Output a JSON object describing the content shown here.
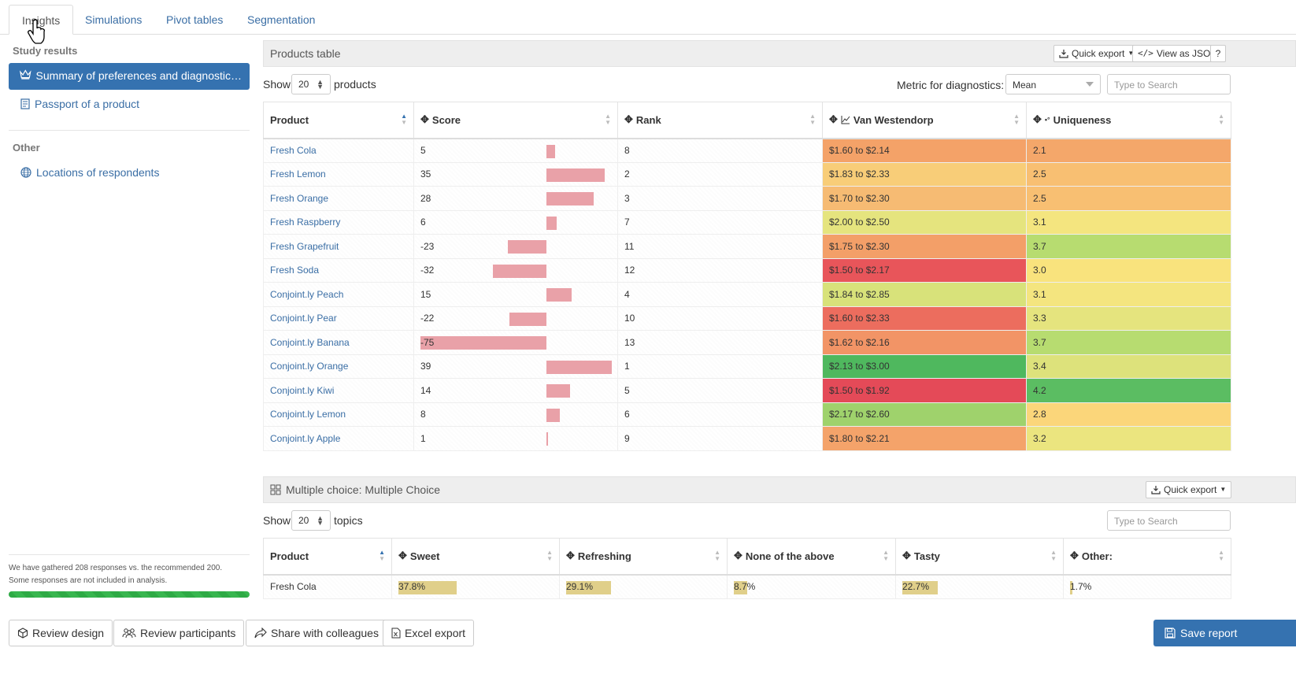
{
  "tabs": [
    "Insights",
    "Simulations",
    "Pivot tables",
    "Segmentation"
  ],
  "sidebar": {
    "study_results_heading": "Study results",
    "active_item": "Summary of preferences and diagnostic…",
    "passport_item": "Passport of a product",
    "other_heading": "Other",
    "locations_item": "Locations of respondents",
    "note_line1": "We have gathered 208 responses vs. the recommended 200.",
    "note_line2": "Some responses are not included in analysis.",
    "progress_fraction": 1.0
  },
  "products_panel": {
    "title": "Products table",
    "quick_export": "Quick export",
    "view_json": "View as JSON",
    "help": "?",
    "show_label": "Show",
    "show_value": "20",
    "show_suffix": "products",
    "metric_label": "Metric for diagnostics:",
    "metric_value": "Mean",
    "search_placeholder": "Type to Search",
    "columns": [
      "Product",
      "Score",
      "Rank",
      "Van Westendorp",
      "Uniqueness"
    ],
    "score_axis_min": -75,
    "score_axis_max": 39,
    "rows": [
      {
        "product": "Fresh Cola",
        "score": 5,
        "rank": "8",
        "vw": "$1.60 to $2.14",
        "vw_color": "#f4a268",
        "uniq": "2.1",
        "uniq_color": "#f4a76a"
      },
      {
        "product": "Fresh Lemon",
        "score": 35,
        "rank": "2",
        "vw": "$1.83 to $2.33",
        "vw_color": "#f8cd78",
        "uniq": "2.5",
        "uniq_color": "#f8bf72"
      },
      {
        "product": "Fresh Orange",
        "score": 28,
        "rank": "3",
        "vw": "$1.70 to $2.30",
        "vw_color": "#f6bb73",
        "uniq": "2.5",
        "uniq_color": "#f8bf72"
      },
      {
        "product": "Fresh Raspberry",
        "score": 6,
        "rank": "7",
        "vw": "$2.00 to $2.50",
        "vw_color": "#e5e47e",
        "uniq": "3.1",
        "uniq_color": "#f4e57f"
      },
      {
        "product": "Fresh Grapefruit",
        "score": -23,
        "rank": "11",
        "vw": "$1.75 to $2.30",
        "vw_color": "#f39f68",
        "uniq": "3.7",
        "uniq_color": "#b7dc70"
      },
      {
        "product": "Fresh Soda",
        "score": -32,
        "rank": "12",
        "vw": "$1.50 to $2.17",
        "vw_color": "#e8555a",
        "uniq": "3.0",
        "uniq_color": "#f9e37d"
      },
      {
        "product": "Conjoint.ly Peach",
        "score": 15,
        "rank": "4",
        "vw": "$1.84 to $2.85",
        "vw_color": "#d8e27a",
        "uniq": "3.1",
        "uniq_color": "#f4e57f"
      },
      {
        "product": "Conjoint.ly Pear",
        "score": -22,
        "rank": "10",
        "vw": "$1.60 to $2.33",
        "vw_color": "#ec6d5e",
        "uniq": "3.3",
        "uniq_color": "#e5e47e"
      },
      {
        "product": "Conjoint.ly Banana",
        "score": -75,
        "rank": "13",
        "vw": "$1.62 to $2.16",
        "vw_color": "#f29466",
        "uniq": "3.7",
        "uniq_color": "#b7dc70"
      },
      {
        "product": "Conjoint.ly Orange",
        "score": 39,
        "rank": "1",
        "vw": "$2.13 to $3.00",
        "vw_color": "#4fb85e",
        "uniq": "3.4",
        "uniq_color": "#dde27b"
      },
      {
        "product": "Conjoint.ly Kiwi",
        "score": 14,
        "rank": "5",
        "vw": "$1.50 to $1.92",
        "vw_color": "#e44a58",
        "uniq": "4.2",
        "uniq_color": "#5bbd62"
      },
      {
        "product": "Conjoint.ly Lemon",
        "score": 8,
        "rank": "6",
        "vw": "$2.17 to $2.60",
        "vw_color": "#9fd26c",
        "uniq": "2.8",
        "uniq_color": "#fbd67a"
      },
      {
        "product": "Conjoint.ly Apple",
        "score": 1,
        "rank": "9",
        "vw": "$1.80 to $2.21",
        "vw_color": "#f4a36a",
        "uniq": "3.2",
        "uniq_color": "#ebe57f"
      }
    ]
  },
  "mc_panel": {
    "title": "Multiple choice: Multiple Choice",
    "quick_export": "Quick export",
    "show_label": "Show",
    "show_value": "20",
    "show_suffix": "topics",
    "search_placeholder": "Type to Search",
    "columns": [
      "Product",
      "Sweet",
      "Refreshing",
      "None of the above",
      "Tasty",
      "Other:"
    ],
    "rows": [
      {
        "product": "Fresh Cola",
        "values": [
          "37.8%",
          "29.1%",
          "8.7%",
          "22.7%",
          "1.7%"
        ],
        "fractions": [
          0.378,
          0.291,
          0.087,
          0.227,
          0.017
        ]
      }
    ]
  },
  "footer": {
    "review_design": "Review design",
    "review_participants": "Review participants",
    "share": "Share with colleagues",
    "excel": "Excel export",
    "save": "Save report"
  },
  "colors": {
    "accent": "#3572b0",
    "link": "#3a6ea5",
    "score_bar": "#e9a1a8",
    "mc_bar": "#e0cf8a",
    "progress": "#2eaa45"
  }
}
